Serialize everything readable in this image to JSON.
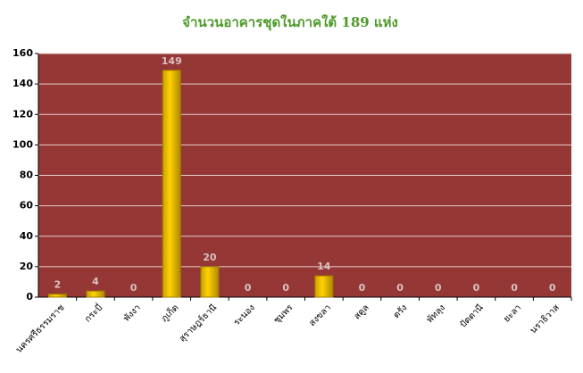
{
  "chart_data": {
    "type": "bar",
    "title": "จำนวนอาคารชุดในภาคใต้ 189 แห่ง",
    "categories": [
      "นครศรีธรรมราช",
      "กระบี่",
      "พังงา",
      "ภูเก็ต",
      "สุราษฎร์ธานี",
      "ระนอง",
      "ชุมพร",
      "สงขลา",
      "สตูล",
      "ตรัง",
      "พัทลุง",
      "ปัตตานี",
      "ยะลา",
      "นราธิวาส"
    ],
    "values": [
      2,
      4,
      0,
      149,
      20,
      0,
      0,
      14,
      0,
      0,
      0,
      0,
      0,
      0
    ],
    "color": "#ffd200",
    "plot_background": "#953735",
    "ylim": [
      0,
      160
    ],
    "yticks": [
      0,
      20,
      40,
      60,
      80,
      100,
      120,
      140,
      160
    ],
    "grid": true
  }
}
